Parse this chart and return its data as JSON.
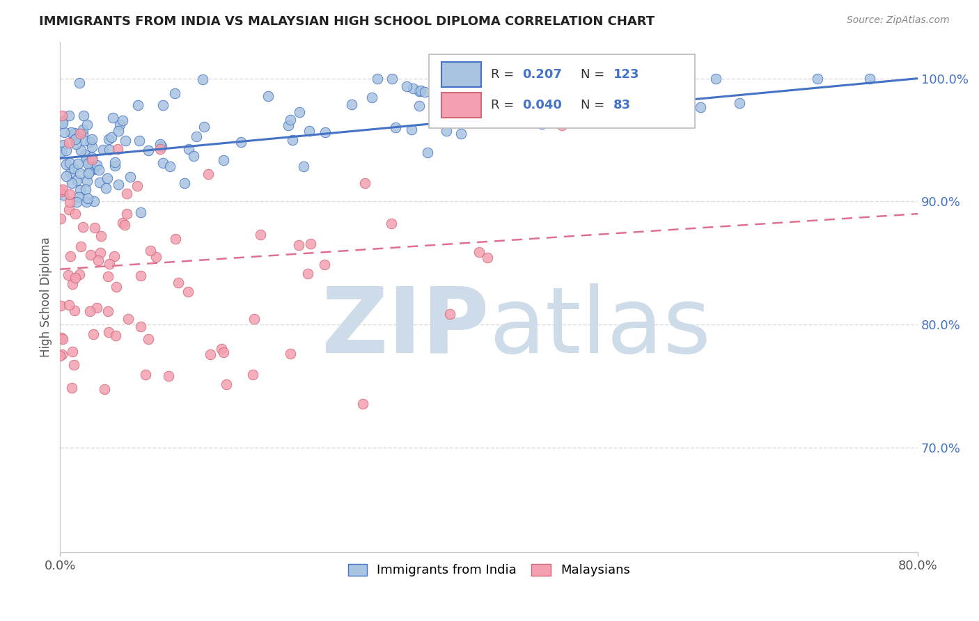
{
  "title": "IMMIGRANTS FROM INDIA VS MALAYSIAN HIGH SCHOOL DIPLOMA CORRELATION CHART",
  "source": "Source: ZipAtlas.com",
  "ylabel": "High School Diploma",
  "ytick_values": [
    0.7,
    0.8,
    0.9,
    1.0
  ],
  "xlim": [
    0.0,
    0.8
  ],
  "ylim": [
    0.615,
    1.03
  ],
  "legend_labels": [
    "Immigrants from India",
    "Malaysians"
  ],
  "r_india": 0.207,
  "n_india": 123,
  "r_malaysia": 0.04,
  "n_malaysia": 83,
  "color_india": "#a8c4e0",
  "color_malaysia": "#f4a0b0",
  "color_india_line": "#4472c4",
  "color_malaysia_line": "#e07090",
  "color_blue_text": "#4472c4",
  "background_color": "#ffffff",
  "grid_color": "#dddddd",
  "watermark_color": "#dde8f0"
}
